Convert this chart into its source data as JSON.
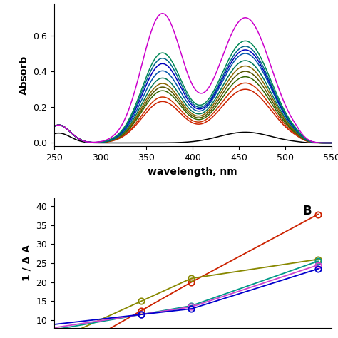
{
  "top_plot": {
    "xlabel": "wavelength, nm",
    "ylabel": "Absorb",
    "xlim": [
      250,
      550
    ],
    "ylim": [
      -0.02,
      0.78
    ],
    "yticks": [
      0.0,
      0.2,
      0.4,
      0.6
    ],
    "xticks": [
      250,
      300,
      350,
      400,
      450,
      500,
      550
    ],
    "lines": [
      {
        "color": "#000000",
        "p1": 0.0,
        "p2": 0.06,
        "bg": 0.055
      },
      {
        "color": "#cc2200",
        "p1": 0.23,
        "p2": 0.3,
        "bg": 0.1
      },
      {
        "color": "#cc3300",
        "p1": 0.255,
        "p2": 0.335,
        "bg": 0.1
      },
      {
        "color": "#336600",
        "p1": 0.29,
        "p2": 0.37,
        "bg": 0.1
      },
      {
        "color": "#555500",
        "p1": 0.31,
        "p2": 0.4,
        "bg": 0.1
      },
      {
        "color": "#886600",
        "p1": 0.33,
        "p2": 0.43,
        "bg": 0.1
      },
      {
        "color": "#007755",
        "p1": 0.36,
        "p2": 0.46,
        "bg": 0.1
      },
      {
        "color": "#0055aa",
        "p1": 0.4,
        "p2": 0.5,
        "bg": 0.1
      },
      {
        "color": "#0000bb",
        "p1": 0.44,
        "p2": 0.52,
        "bg": 0.1
      },
      {
        "color": "#006688",
        "p1": 0.47,
        "p2": 0.54,
        "bg": 0.1
      },
      {
        "color": "#008855",
        "p1": 0.5,
        "p2": 0.57,
        "bg": 0.1
      },
      {
        "color": "#cc00cc",
        "p1": 0.72,
        "p2": 0.7,
        "bg": 0.1
      }
    ]
  },
  "bottom_plot": {
    "ylabel": "1 / Δ A",
    "xlim": [
      0,
      1.05
    ],
    "ylim": [
      8,
      42
    ],
    "yticks": [
      10,
      15,
      20,
      25,
      30,
      35,
      40
    ],
    "lines": [
      {
        "color": "#cc2200",
        "x": [
          0.33,
          0.52,
          1.0
        ],
        "y": [
          12.5,
          20.0,
          37.8
        ]
      },
      {
        "color": "#888800",
        "x": [
          0.33,
          0.52,
          1.0
        ],
        "y": [
          15.0,
          21.0,
          26.0
        ]
      },
      {
        "color": "#009988",
        "x": [
          0.33,
          0.52,
          1.0
        ],
        "y": [
          11.5,
          13.8,
          25.5
        ]
      },
      {
        "color": "#cc44cc",
        "x": [
          0.33,
          0.52,
          1.0
        ],
        "y": [
          11.5,
          13.5,
          24.5
        ]
      },
      {
        "color": "#0000cc",
        "x": [
          0.33,
          0.52,
          1.0
        ],
        "y": [
          11.5,
          13.0,
          23.5
        ]
      }
    ]
  }
}
